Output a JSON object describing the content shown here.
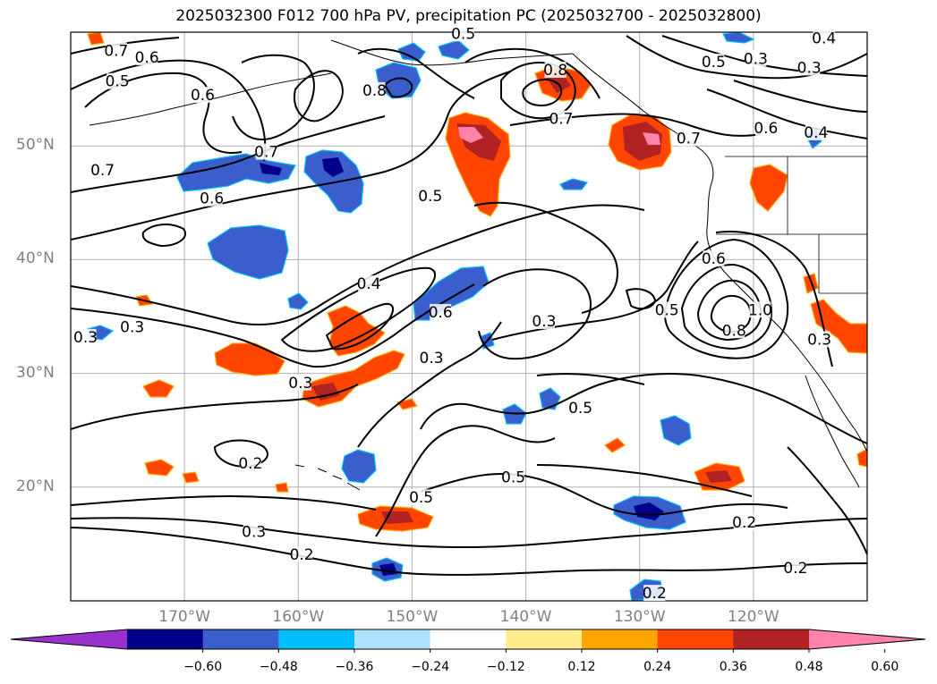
{
  "title": "2025032300 F012 700 hPa PV, precipitation PC (2025032700 - 2025032800)",
  "map": {
    "lon_range": [
      -180,
      -110
    ],
    "lat_range": [
      10,
      60
    ],
    "lon_ticks": [
      {
        "value": -170,
        "label": "170°W"
      },
      {
        "value": -160,
        "label": "160°W"
      },
      {
        "value": -150,
        "label": "150°W"
      },
      {
        "value": -140,
        "label": "140°W"
      },
      {
        "value": -130,
        "label": "130°W"
      },
      {
        "value": -120,
        "label": "120°W"
      }
    ],
    "lat_ticks": [
      {
        "value": 50,
        "label": "50°N"
      },
      {
        "value": 40,
        "label": "40°N"
      },
      {
        "value": 30,
        "label": "30°N"
      },
      {
        "value": 20,
        "label": "20°N"
      }
    ],
    "grid": true
  },
  "contour_labels": [
    {
      "text": "0.7",
      "lon": -176,
      "lat": 58.4
    },
    {
      "text": "0.6",
      "lon": -173.3,
      "lat": 57.8
    },
    {
      "text": "0.5",
      "lon": -175.9,
      "lat": 55.7
    },
    {
      "text": "0.6",
      "lon": -168.4,
      "lat": 54.5
    },
    {
      "text": "0.8",
      "lon": -153.3,
      "lat": 54.9
    },
    {
      "text": "0.7",
      "lon": -177.2,
      "lat": 47.9
    },
    {
      "text": "0.7",
      "lon": -162.8,
      "lat": 49.5
    },
    {
      "text": "0.6",
      "lon": -167.6,
      "lat": 45.4
    },
    {
      "text": "0.5",
      "lon": -145.5,
      "lat": 59.9
    },
    {
      "text": "0.8",
      "lon": -137.4,
      "lat": 56.7
    },
    {
      "text": "0.7",
      "lon": -136.9,
      "lat": 52.4
    },
    {
      "text": "0.7",
      "lon": -125.7,
      "lat": 50.7
    },
    {
      "text": "0.5",
      "lon": -148.4,
      "lat": 45.6
    },
    {
      "text": "0.4",
      "lon": -113.8,
      "lat": 59.5
    },
    {
      "text": "0.5",
      "lon": -123.5,
      "lat": 57.4
    },
    {
      "text": "0.3",
      "lon": -119.8,
      "lat": 57.7
    },
    {
      "text": "0.3",
      "lon": -115.1,
      "lat": 56.9
    },
    {
      "text": "0.6",
      "lon": -118.9,
      "lat": 51.6
    },
    {
      "text": "0.4",
      "lon": -114.5,
      "lat": 51.2
    },
    {
      "text": "0.4",
      "lon": -153.8,
      "lat": 37.9
    },
    {
      "text": "0.6",
      "lon": -147.5,
      "lat": 35.4
    },
    {
      "text": "0.3",
      "lon": -178.7,
      "lat": 33.2
    },
    {
      "text": "0.3",
      "lon": -174.6,
      "lat": 34.1
    },
    {
      "text": "0.3",
      "lon": -148.3,
      "lat": 31.4
    },
    {
      "text": "0.3",
      "lon": -138.4,
      "lat": 34.6
    },
    {
      "text": "0.3",
      "lon": -159.8,
      "lat": 29.2
    },
    {
      "text": "0.5",
      "lon": -135.2,
      "lat": 27
    },
    {
      "text": "0.6",
      "lon": -123.5,
      "lat": 40.1
    },
    {
      "text": "0.5",
      "lon": -127.6,
      "lat": 35.6
    },
    {
      "text": "0.8",
      "lon": -121.7,
      "lat": 33.8
    },
    {
      "text": "1.0",
      "lon": -119.4,
      "lat": 35.6
    },
    {
      "text": "0.3",
      "lon": -114.2,
      "lat": 33
    },
    {
      "text": "0.2",
      "lon": -164.2,
      "lat": 22.1
    },
    {
      "text": "0.5",
      "lon": -141.1,
      "lat": 20.9
    },
    {
      "text": "0.5",
      "lon": -149.2,
      "lat": 19.1
    },
    {
      "text": "0.3",
      "lon": -163.9,
      "lat": 16.1
    },
    {
      "text": "0.2",
      "lon": -159.7,
      "lat": 14.1
    },
    {
      "text": "0.2",
      "lon": -120.8,
      "lat": 16.9
    },
    {
      "text": "0.2",
      "lon": -116.3,
      "lat": 12.9
    },
    {
      "text": "0.2",
      "lon": -128.7,
      "lat": 10.7
    }
  ],
  "colorbar": {
    "colors": [
      "#9932cc",
      "#00008b",
      "#3a5fcd",
      "#00bfff",
      "#b0e2ff",
      "#ffffff",
      "#ffec8b",
      "#ffa500",
      "#ff4500",
      "#b22222",
      "#ff83aa"
    ],
    "tick_labels": [
      "−0.60",
      "−0.48",
      "−0.36",
      "−0.24",
      "−0.12",
      "0.12",
      "0.24",
      "0.36",
      "0.48",
      "0.60"
    ],
    "extend": "both"
  }
}
